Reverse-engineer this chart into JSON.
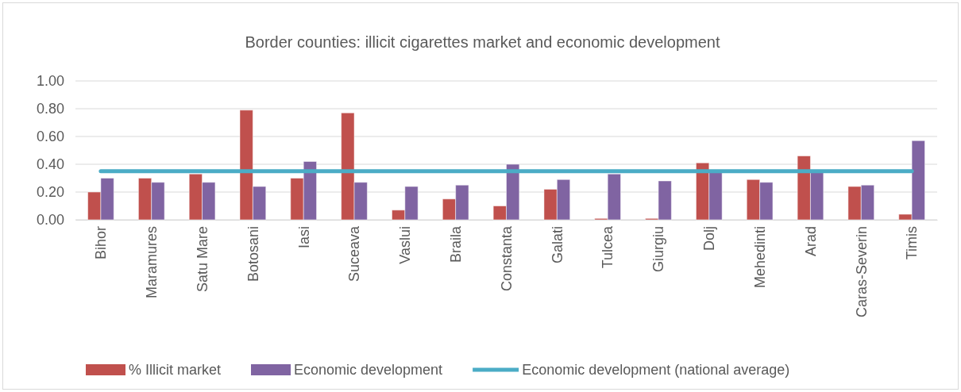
{
  "chart_data": {
    "type": "bar",
    "title": "Border counties: illicit cigarettes market and economic development",
    "categories": [
      "Bihor",
      "Maramures",
      "Satu Mare",
      "Botosani",
      "Iasi",
      "Suceava",
      "Vaslui",
      "Braila",
      "Constanta",
      "Galati",
      "Tulcea",
      "Giurgiu",
      "Dolj",
      "Mehedinti",
      "Arad",
      "Caras-Severin",
      "Timis"
    ],
    "series": [
      {
        "name": "% Illicit market",
        "color": "#c0504d",
        "values": [
          0.2,
          0.3,
          0.33,
          0.79,
          0.3,
          0.77,
          0.07,
          0.15,
          0.1,
          0.22,
          0.01,
          0.01,
          0.41,
          0.29,
          0.46,
          0.24,
          0.04
        ]
      },
      {
        "name": "Economic development",
        "color": "#8064a2",
        "values": [
          0.3,
          0.27,
          0.27,
          0.24,
          0.42,
          0.27,
          0.24,
          0.25,
          0.4,
          0.29,
          0.33,
          0.28,
          0.34,
          0.27,
          0.34,
          0.25,
          0.57
        ]
      },
      {
        "name": "Economic development (national average)",
        "type": "line",
        "color": "#4bacc6",
        "values": [
          0.35,
          0.35,
          0.35,
          0.35,
          0.35,
          0.35,
          0.35,
          0.35,
          0.35,
          0.35,
          0.35,
          0.35,
          0.35,
          0.35,
          0.35,
          0.35,
          0.35
        ]
      }
    ],
    "ylim": [
      0,
      1
    ],
    "yticks": [
      {
        "value": 0,
        "label": "0.00"
      },
      {
        "value": 0.2,
        "label": "0.20"
      },
      {
        "value": 0.4,
        "label": "0.40"
      },
      {
        "value": 0.6,
        "label": "0.60"
      },
      {
        "value": 0.8,
        "label": "0.80"
      },
      {
        "value": 1,
        "label": "1.00"
      }
    ],
    "grid": "y",
    "legend": "bottom"
  }
}
